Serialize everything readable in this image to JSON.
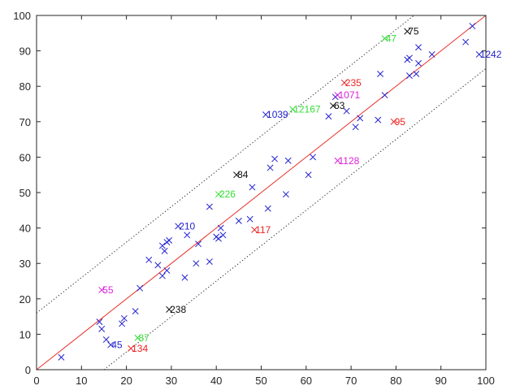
{
  "chart_data": {
    "type": "scatter",
    "title": "",
    "xlabel": "",
    "ylabel": "",
    "xlim": [
      0,
      100
    ],
    "ylim": [
      0,
      100
    ],
    "x_ticks": [
      "0",
      "10",
      "20",
      "30",
      "40",
      "50",
      "60",
      "70",
      "80",
      "90",
      "100"
    ],
    "y_ticks": [
      "0",
      "10",
      "20",
      "30",
      "40",
      "50",
      "60",
      "70",
      "80",
      "90",
      "100"
    ],
    "grid": false,
    "legend": "none",
    "reference_line": {
      "from": [
        0,
        0
      ],
      "to": [
        100,
        100
      ],
      "color": "#e8302a"
    },
    "band_lines": [
      {
        "from": [
          0,
          16
        ],
        "to": [
          84,
          100
        ],
        "color": "#222222",
        "style": "dotted"
      },
      {
        "from": [
          15,
          0
        ],
        "to": [
          100,
          85
        ],
        "color": "#222222",
        "style": "dotted"
      }
    ],
    "marker": "x",
    "unlabeled_color": "#2323d0",
    "unlabeled_points": [
      [
        5.5,
        3.5
      ],
      [
        15.5,
        8.5
      ],
      [
        14,
        13.5
      ],
      [
        14.5,
        11.5
      ],
      [
        19,
        13
      ],
      [
        19.5,
        14.5
      ],
      [
        22,
        16.5
      ],
      [
        23,
        23
      ],
      [
        25,
        31
      ],
      [
        27,
        29.5
      ],
      [
        28,
        26.5
      ],
      [
        28,
        35
      ],
      [
        28.5,
        33.5
      ],
      [
        29,
        36
      ],
      [
        29.5,
        36.5
      ],
      [
        29,
        28
      ],
      [
        33,
        26
      ],
      [
        33.5,
        38
      ],
      [
        35.5,
        30
      ],
      [
        36,
        35.5
      ],
      [
        38.5,
        30.5
      ],
      [
        38.5,
        46
      ],
      [
        40,
        37.5
      ],
      [
        40.5,
        37
      ],
      [
        41,
        40
      ],
      [
        41.5,
        38
      ],
      [
        45,
        42
      ],
      [
        47.5,
        42.5
      ],
      [
        48,
        51.5
      ],
      [
        51.5,
        45.5
      ],
      [
        52,
        57
      ],
      [
        53,
        59.5
      ],
      [
        55.5,
        49.5
      ],
      [
        56,
        59
      ],
      [
        60.5,
        55
      ],
      [
        61.5,
        60
      ],
      [
        65,
        71.5
      ],
      [
        66.5,
        77
      ],
      [
        69,
        73
      ],
      [
        71,
        68.5
      ],
      [
        72,
        71
      ],
      [
        76,
        70.5
      ],
      [
        76.5,
        83.5
      ],
      [
        77.5,
        77.5
      ],
      [
        82.5,
        87.5
      ],
      [
        83,
        88
      ],
      [
        83,
        83
      ],
      [
        84.5,
        83.5
      ],
      [
        85,
        86.5
      ],
      [
        85,
        91
      ],
      [
        88,
        89
      ],
      [
        95.5,
        92.5
      ],
      [
        97,
        97
      ]
    ],
    "labeled_points": [
      {
        "x": 98.5,
        "y": 89,
        "label": "1242",
        "color": "#2323d0"
      },
      {
        "x": 82.5,
        "y": 95.5,
        "label": "75",
        "color": "#111111"
      },
      {
        "x": 77.5,
        "y": 93.5,
        "label": "47",
        "color": "#33dd33"
      },
      {
        "x": 68.5,
        "y": 81,
        "label": "235",
        "color": "#ee2222"
      },
      {
        "x": 67,
        "y": 77.5,
        "label": "1071",
        "color": "#dd22dd"
      },
      {
        "x": 66,
        "y": 74.5,
        "label": "63",
        "color": "#111111"
      },
      {
        "x": 57,
        "y": 73.5,
        "label": "12167",
        "color": "#33dd33"
      },
      {
        "x": 51,
        "y": 72,
        "label": "1039",
        "color": "#2323d0"
      },
      {
        "x": 79.5,
        "y": 70,
        "label": "95",
        "color": "#ee2222"
      },
      {
        "x": 67,
        "y": 59,
        "label": "1128",
        "color": "#dd22dd"
      },
      {
        "x": 44.5,
        "y": 55,
        "label": "84",
        "color": "#111111"
      },
      {
        "x": 40.5,
        "y": 49.5,
        "label": "226",
        "color": "#33dd33"
      },
      {
        "x": 31.5,
        "y": 40.5,
        "label": "210",
        "color": "#2323d0"
      },
      {
        "x": 48.5,
        "y": 39.5,
        "label": "117",
        "color": "#ee2222"
      },
      {
        "x": 14.5,
        "y": 22.5,
        "label": "55",
        "color": "#dd22dd"
      },
      {
        "x": 29.5,
        "y": 17,
        "label": "238",
        "color": "#111111"
      },
      {
        "x": 16.5,
        "y": 7,
        "label": "45",
        "color": "#2323d0"
      },
      {
        "x": 22.5,
        "y": 9,
        "label": "87",
        "color": "#33dd33"
      },
      {
        "x": 21,
        "y": 6,
        "label": "134",
        "color": "#ee2222"
      }
    ]
  }
}
